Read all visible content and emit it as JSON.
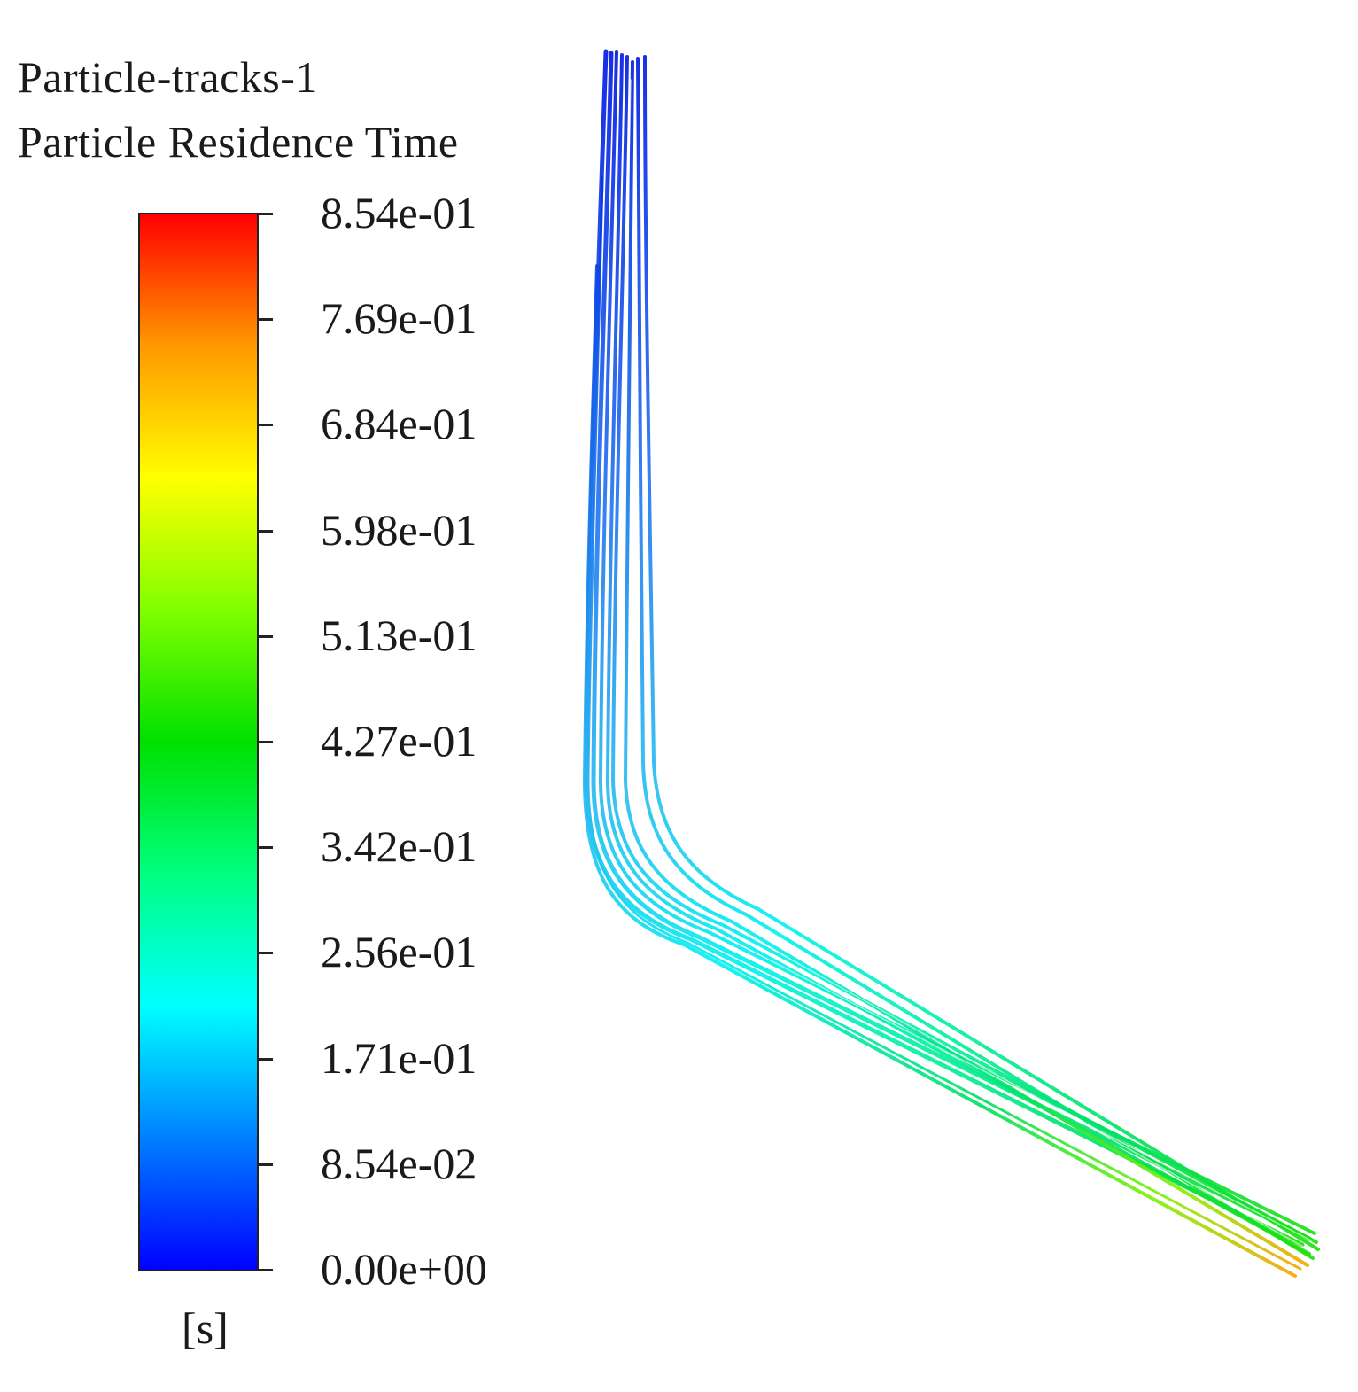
{
  "legend": {
    "title_line1": "Particle-tracks-1",
    "title_line2": "Particle Residence Time",
    "unit": "[s]",
    "tick_labels": [
      "8.54e-01",
      "7.69e-01",
      "6.84e-01",
      "5.98e-01",
      "5.13e-01",
      "4.27e-01",
      "3.42e-01",
      "2.56e-01",
      "1.71e-01",
      "8.54e-02",
      "0.00e+00"
    ],
    "range": [
      0.0,
      0.854
    ],
    "colormap": [
      "#0000ff",
      "#0080ff",
      "#00ffff",
      "#00ff80",
      "#00e000",
      "#80ff00",
      "#ffff00",
      "#ff9900",
      "#ff0000"
    ]
  },
  "colors": {
    "low": "#0000ff",
    "mid": "#00ffff",
    "high": "#ff0000",
    "background": "#ffffff"
  }
}
